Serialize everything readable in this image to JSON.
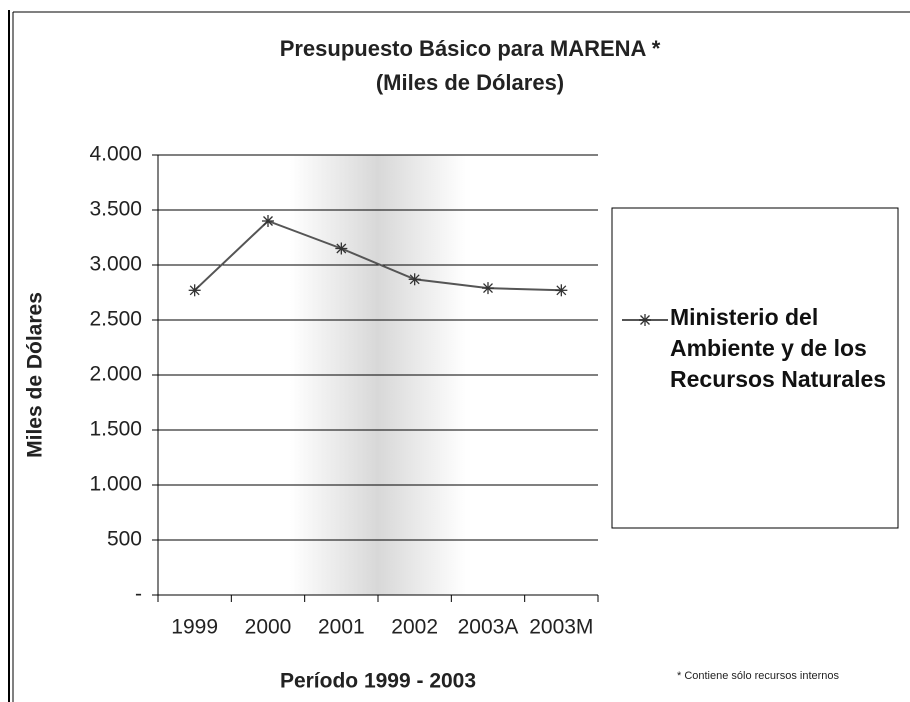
{
  "chart_data": {
    "type": "line",
    "title": "Presupuesto Básico para MARENA *",
    "subtitle": "(Miles de Dólares)",
    "x_label": "Período 1999 - 2003",
    "y_label": "Miles de Dólares",
    "footnote": "* Contiene sólo recursos internos",
    "categories": [
      "1999",
      "2000",
      "2001",
      "2002",
      "2003A",
      "2003M"
    ],
    "series": [
      {
        "name": "Ministerio del Ambiente y de los Recursos Naturales",
        "color": "#555555",
        "values": [
          2770,
          3400,
          3150,
          2870,
          2790,
          2770
        ]
      }
    ],
    "ylim": [
      0,
      4000
    ],
    "yticks": [
      {
        "value": 0,
        "label": "-"
      },
      500,
      {
        "value": 1000,
        "label": "1.000"
      },
      {
        "value": 1500,
        "label": "1.500"
      },
      {
        "value": 2000,
        "label": "2.000"
      },
      {
        "value": 2500,
        "label": "2.500"
      },
      {
        "value": 3000,
        "label": "3.000"
      },
      {
        "value": 3500,
        "label": "3.500"
      },
      {
        "value": 4000,
        "label": "4.000"
      }
    ],
    "grid": true,
    "legend": "right"
  }
}
